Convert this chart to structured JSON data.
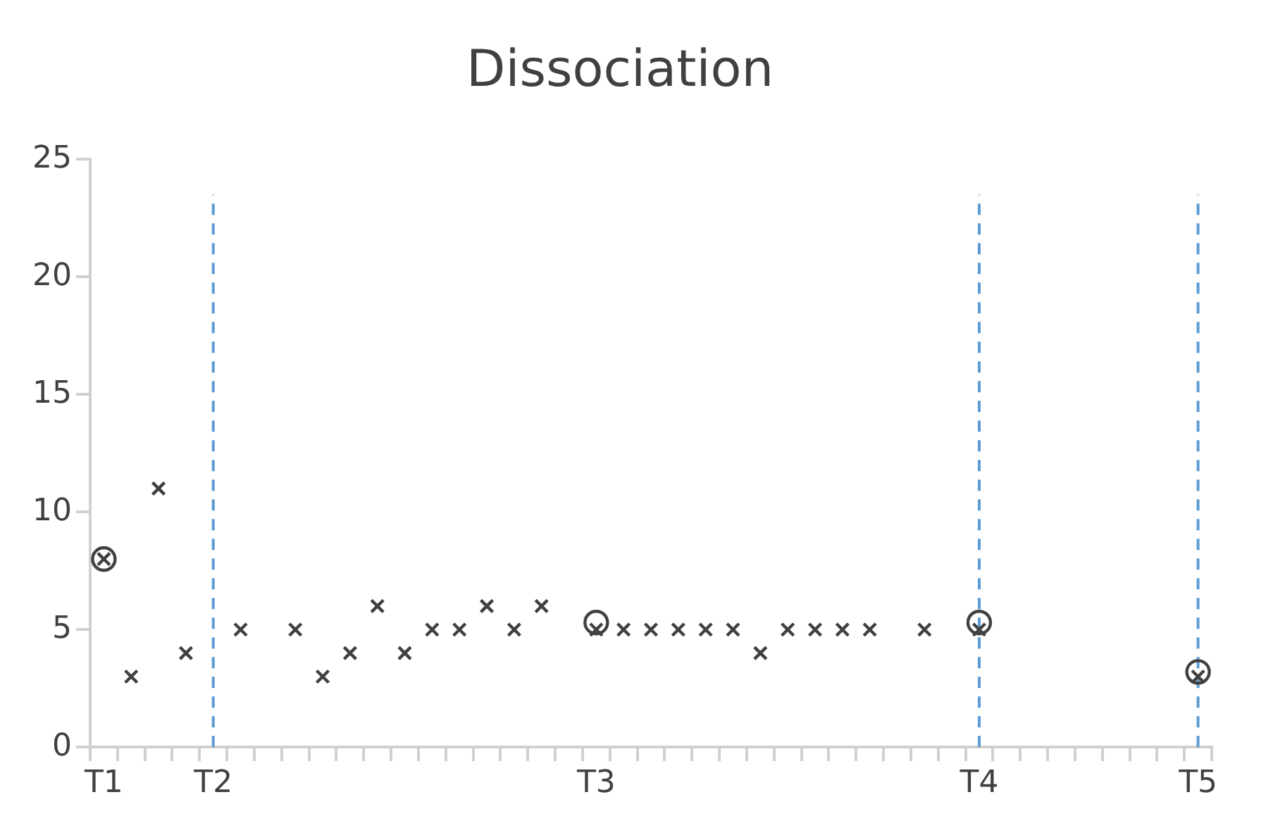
{
  "chart_data": {
    "type": "scatter",
    "title": "Dissociation",
    "categories": [
      "T1",
      null,
      null,
      null,
      "T2",
      null,
      null,
      null,
      null,
      null,
      null,
      null,
      null,
      null,
      null,
      null,
      null,
      null,
      "T3",
      null,
      null,
      null,
      null,
      null,
      null,
      null,
      null,
      null,
      null,
      null,
      null,
      null,
      "T4",
      null,
      null,
      null,
      null,
      null,
      null,
      null,
      "T5"
    ],
    "ylim": [
      0,
      25
    ],
    "yticks": [
      0,
      5,
      10,
      15,
      20,
      25
    ],
    "grid": false,
    "legend": false,
    "series": [
      {
        "color": "#404040",
        "marker": "circle",
        "values": [
          8,
          null,
          null,
          null,
          null,
          null,
          null,
          null,
          null,
          null,
          null,
          null,
          null,
          null,
          null,
          null,
          null,
          null,
          5.3,
          null,
          null,
          null,
          null,
          null,
          null,
          null,
          null,
          null,
          null,
          null,
          null,
          null,
          5.3,
          null,
          null,
          null,
          null,
          null,
          null,
          null,
          3.2
        ]
      },
      {
        "color": "#404040",
        "marker": "cross",
        "values": [
          8,
          3,
          11,
          4,
          null,
          5,
          null,
          5,
          3,
          4,
          6,
          4,
          5,
          5,
          6,
          5,
          6,
          null,
          5,
          5,
          5,
          5,
          5,
          5,
          4,
          5,
          5,
          5,
          5,
          null,
          5,
          null,
          5,
          null,
          null,
          null,
          null,
          null,
          null,
          null,
          3
        ]
      }
    ],
    "ref_lines": [
      {
        "axis": "x",
        "value": "T2",
        "color": "#5b9bd5",
        "line_style": "dashed"
      },
      {
        "axis": "x",
        "value": "T4",
        "color": "#5b9bd5",
        "line_style": "dashed"
      },
      {
        "axis": "x",
        "value": "T5",
        "color": "#5b9bd5",
        "line_style": "dashed"
      }
    ]
  }
}
